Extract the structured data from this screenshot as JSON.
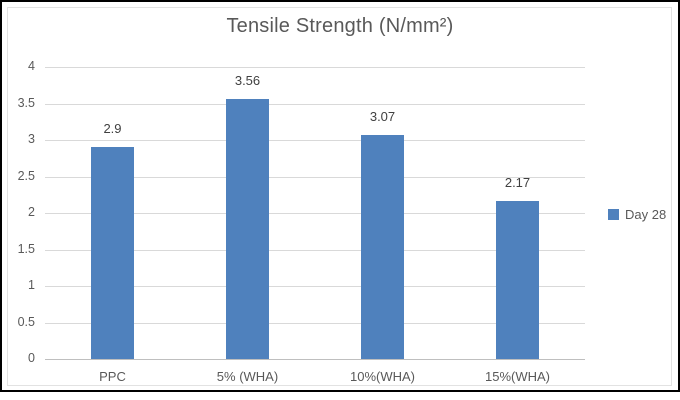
{
  "chart_data": {
    "type": "bar",
    "title": "Tensile Strength (N/mm²)",
    "categories": [
      "PPC",
      "5% (WHA)",
      "10%(WHA)",
      "15%(WHA)"
    ],
    "series": [
      {
        "name": "Day 28",
        "values": [
          2.9,
          3.56,
          3.07,
          2.17
        ],
        "data_labels": [
          "2.9",
          "3.56",
          "3.07",
          "2.17"
        ],
        "color": "#4f81bd"
      }
    ],
    "xlabel": "",
    "ylabel": "",
    "ylim": [
      0,
      4
    ],
    "ytick_step": 0.5,
    "ytick_labels": [
      "0",
      "0.5",
      "1",
      "1.5",
      "2",
      "2.5",
      "3",
      "3.5",
      "4"
    ],
    "grid": true,
    "legend_position": "right",
    "colors": {
      "bar": "#4f81bd",
      "gridline": "#d9d9d9",
      "axis_line": "#bfbfbf",
      "title_text": "#595959",
      "tick_text": "#595959",
      "data_label_text": "#404040"
    }
  }
}
